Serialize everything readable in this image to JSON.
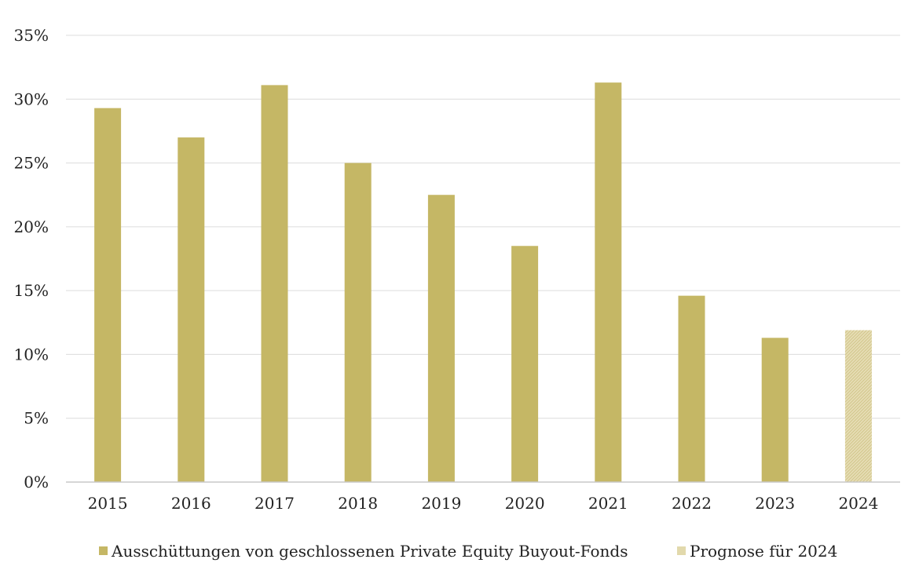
{
  "chart_data": {
    "type": "bar",
    "title": "",
    "xlabel": "",
    "ylabel": "",
    "categories": [
      "2015",
      "2016",
      "2017",
      "2018",
      "2019",
      "2020",
      "2021",
      "2022",
      "2023",
      "2024"
    ],
    "series": [
      {
        "name": "Ausschüttungen von geschlossenen Private Equity Buyout-Fonds",
        "values": [
          29.3,
          27.0,
          31.1,
          25.0,
          22.5,
          18.5,
          31.3,
          14.6,
          11.3,
          null
        ],
        "color": "#c5b765"
      },
      {
        "name": "Prognose für 2024",
        "values": [
          null,
          null,
          null,
          null,
          null,
          null,
          null,
          null,
          null,
          11.9
        ],
        "color": "#e2d9ac",
        "pattern": "hatched"
      }
    ],
    "ylim": [
      0,
      35
    ],
    "yticks": [
      0,
      5,
      10,
      15,
      20,
      25,
      30,
      35
    ],
    "ytick_format": "%",
    "grid": true,
    "legend": "bottom-center"
  }
}
